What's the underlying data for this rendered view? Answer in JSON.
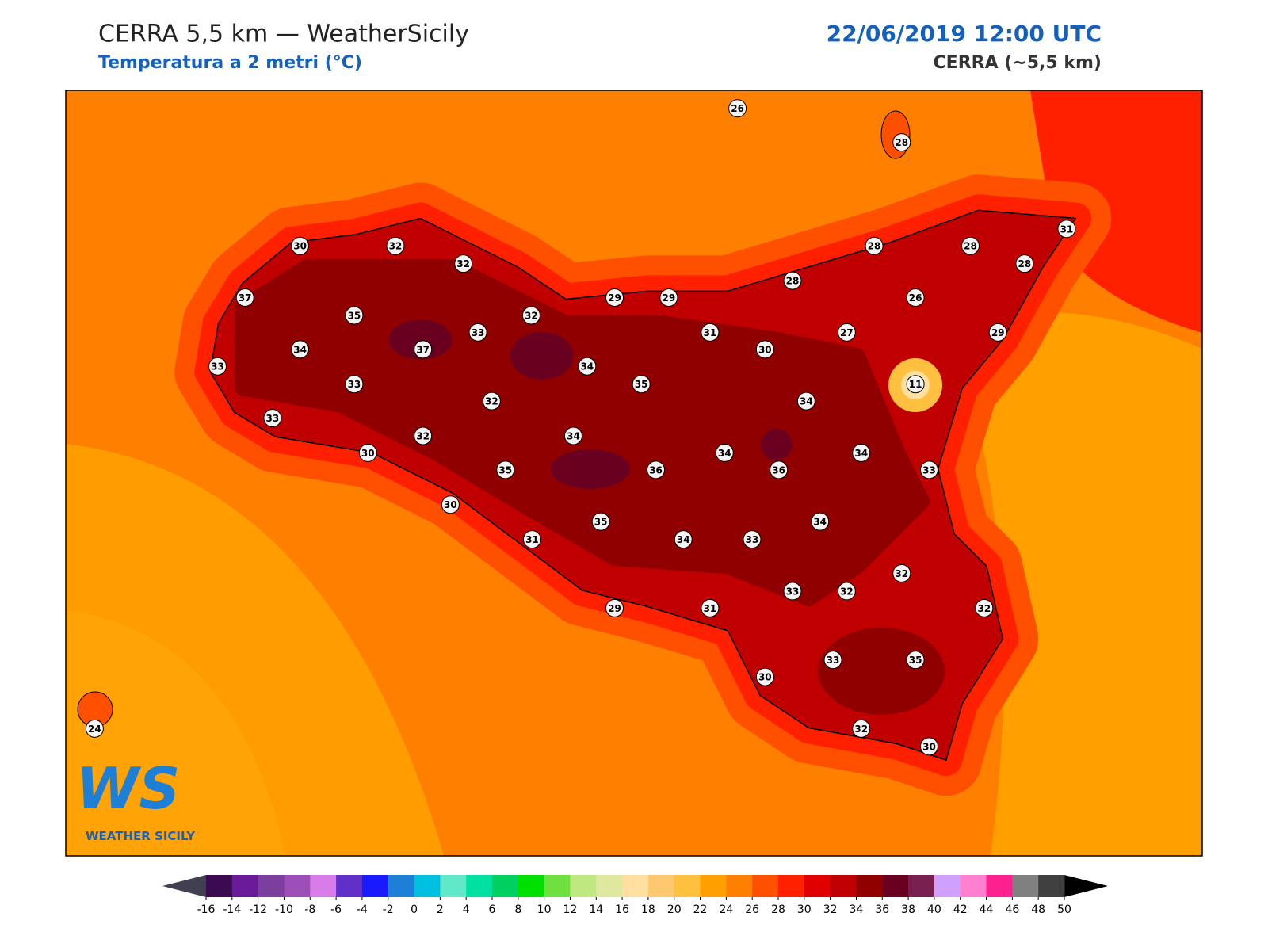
{
  "header": {
    "title": "CERRA 5,5 km — WeatherSicily",
    "subtitle": "Temperatura a 2 metri (°C)",
    "date": "22/06/2019 12:00 UTC",
    "model": "CERRA (~5,5 km)"
  },
  "stations": [
    26,
    28,
    30,
    32,
    32,
    28,
    28,
    31,
    28,
    37,
    29,
    29,
    28,
    26,
    35,
    32,
    33,
    31,
    27,
    29,
    34,
    37,
    30,
    33,
    34,
    11,
    33,
    35,
    32,
    34,
    33,
    32,
    34,
    30,
    34,
    34,
    35,
    36,
    36,
    33,
    30,
    35,
    34,
    31,
    34,
    33,
    32,
    33,
    32,
    29,
    31,
    32,
    33,
    35,
    30,
    32,
    30,
    24
  ],
  "logo": {
    "mark": "WS",
    "text": "WEATHER SICILY"
  },
  "colorbar": {
    "ticks": [
      -16,
      -14,
      -12,
      -10,
      -8,
      -6,
      -4,
      -2,
      0,
      2,
      4,
      6,
      8,
      10,
      12,
      14,
      16,
      18,
      20,
      22,
      24,
      26,
      28,
      30,
      32,
      34,
      36,
      38,
      40,
      42,
      44,
      46,
      48,
      50
    ],
    "colors": [
      "#3b0a50",
      "#6a1b9a",
      "#7b3fa0",
      "#9c4fb8",
      "#d97be8",
      "#6030c8",
      "#1a1aff",
      "#1e7fd6",
      "#00c0e0",
      "#60e8c8",
      "#00e0a0",
      "#00d060",
      "#00e000",
      "#70e040",
      "#c0e880",
      "#e0e8a0",
      "#ffe0a0",
      "#ffc870",
      "#ffc040",
      "#ffa000",
      "#ff8000",
      "#ff5000",
      "#ff2000",
      "#e00000",
      "#c00000",
      "#900000",
      "#6a0020",
      "#7a2050",
      "#d0a0ff",
      "#ff80d0",
      "#ff2090",
      "#808080",
      "#404040"
    ],
    "under": "#404050",
    "over": "#000000"
  }
}
